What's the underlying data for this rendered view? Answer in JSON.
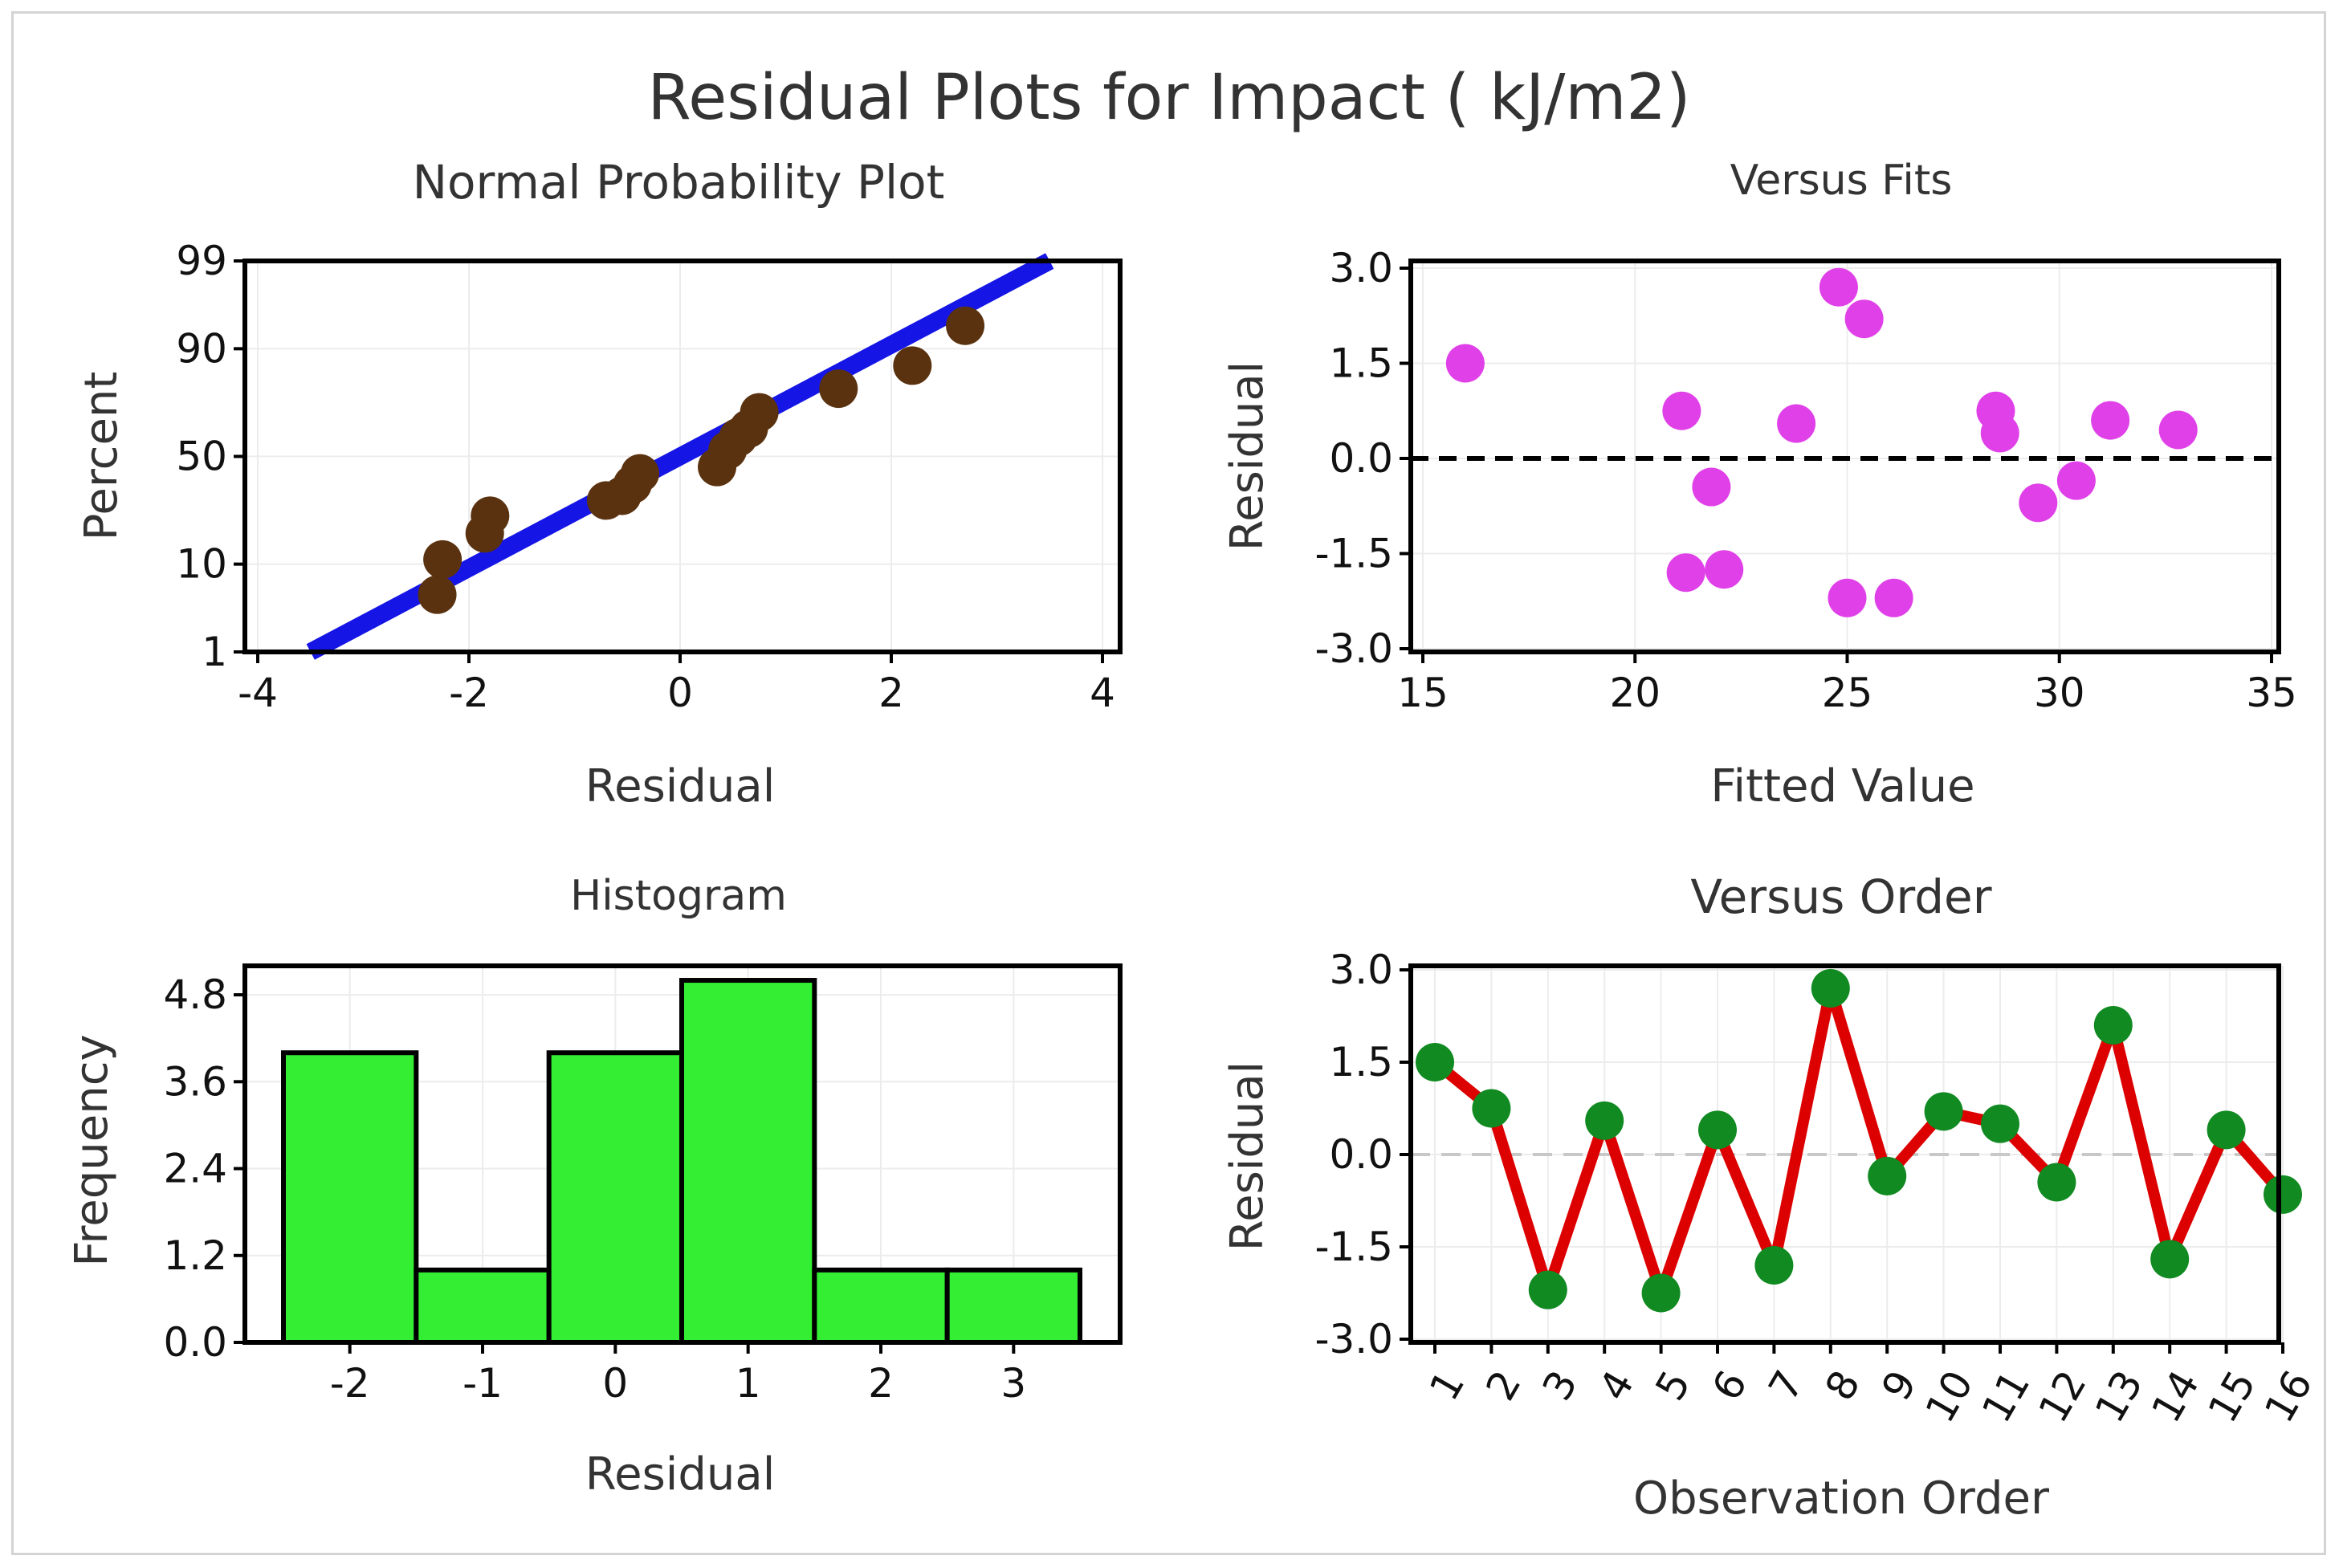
{
  "title": "Residual Plots for Impact ( kJ/m2)",
  "colors": {
    "normal_line": "#1515e6",
    "normal_points": "#5a3210",
    "fits_points": "#e040e8",
    "hist_bars": "#33ee33",
    "order_line": "#dd0000",
    "order_points": "#118a22",
    "frame": "#000000"
  },
  "chart_data": [
    {
      "type": "scatter",
      "title": "Normal Probability Plot",
      "xlabel": "Residual",
      "ylabel": "Percent",
      "xlim": [
        -4,
        4
      ],
      "xticks": [
        "-4",
        "-2",
        "0",
        "2",
        "4"
      ],
      "yticks": [
        "1",
        "10",
        "50",
        "90",
        "99"
      ],
      "y_scale": "normal probability",
      "fit_line": {
        "x": [
          -3.5,
          3.5
        ],
        "percent": [
          1,
          99
        ]
      },
      "points": {
        "x": [
          -2.3,
          -2.25,
          -1.85,
          -1.8,
          -0.7,
          -0.55,
          -0.45,
          -0.38,
          0.35,
          0.45,
          0.55,
          0.65,
          0.75,
          1.5,
          2.2,
          2.7
        ],
        "percent": [
          5,
          11,
          18,
          24,
          30,
          32,
          37,
          42,
          45,
          53,
          59,
          63,
          70,
          79,
          86,
          94
        ]
      }
    },
    {
      "type": "scatter",
      "title": "Versus Fits",
      "xlabel": "Fitted Value",
      "ylabel": "Residual",
      "xlim": [
        15,
        35
      ],
      "ylim": [
        -3.0,
        3.0
      ],
      "xticks": [
        "15",
        "20",
        "25",
        "30",
        "35"
      ],
      "yticks": [
        "3.0",
        "1.5",
        "0.0",
        "-1.5",
        "-3.0"
      ],
      "reference_line": 0,
      "x": [
        16.0,
        21.1,
        21.2,
        21.8,
        22.1,
        23.8,
        24.8,
        25.0,
        25.4,
        26.1,
        28.5,
        28.6,
        29.5,
        30.4,
        31.2,
        32.8
      ],
      "y": [
        1.5,
        0.75,
        -1.8,
        -0.45,
        -1.75,
        0.55,
        2.7,
        -2.2,
        2.2,
        -2.2,
        0.75,
        0.4,
        -0.7,
        -0.35,
        0.6,
        0.45
      ]
    },
    {
      "type": "bar",
      "title": "Histogram",
      "xlabel": "Residual",
      "ylabel": "Frequency",
      "categories": [
        "-2",
        "-1",
        "0",
        "1",
        "2",
        "3"
      ],
      "values": [
        4,
        1,
        4,
        5,
        1,
        1
      ],
      "ylim": [
        0,
        5.2
      ],
      "yticks": [
        "0.0",
        "1.2",
        "2.4",
        "3.6",
        "4.8"
      ]
    },
    {
      "type": "line",
      "title": "Versus Order",
      "xlabel": "Observation Order",
      "ylabel": "Residual",
      "ylim": [
        -3.0,
        3.0
      ],
      "yticks": [
        "3.0",
        "1.5",
        "0.0",
        "-1.5",
        "-3.0"
      ],
      "reference_line": 0,
      "x": [
        "1",
        "2",
        "3",
        "4",
        "5",
        "6",
        "7",
        "8",
        "9",
        "10",
        "11",
        "12",
        "13",
        "14",
        "15",
        "16"
      ],
      "y": [
        1.5,
        0.75,
        -2.2,
        0.55,
        -2.25,
        0.4,
        -1.8,
        2.7,
        -0.35,
        0.7,
        0.5,
        -0.45,
        2.1,
        -1.7,
        0.4,
        -0.65
      ]
    }
  ]
}
